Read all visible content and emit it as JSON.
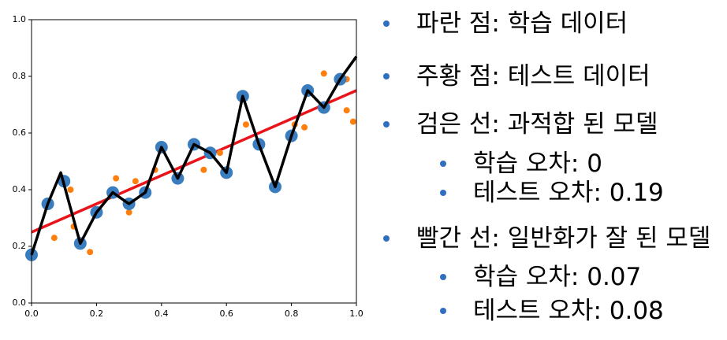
{
  "chart_data": {
    "type": "scatter",
    "xlim": [
      0,
      1
    ],
    "ylim": [
      0,
      1
    ],
    "xticks": [
      {
        "value": 0,
        "label": "0.0"
      },
      0.2,
      0.4,
      0.6,
      0.8,
      {
        "value": 1,
        "label": "1.0"
      }
    ],
    "yticks": [
      {
        "value": 0,
        "label": "0.0"
      },
      0.2,
      0.4,
      0.6,
      0.8,
      {
        "value": 1,
        "label": "1.0"
      }
    ],
    "series": [
      {
        "mode": "line",
        "color": "#e8141a",
        "x": [
          0,
          1
        ],
        "values": [
          0.25,
          0.75
        ]
      },
      {
        "mode": "markers",
        "color": "#ff7f0e",
        "size": 4,
        "x": [
          0.07,
          0.12,
          0.13,
          0.18,
          0.26,
          0.3,
          0.32,
          0.38,
          0.53,
          0.58,
          0.66,
          0.81,
          0.84,
          0.9,
          0.97,
          0.97,
          0.99
        ],
        "values": [
          0.23,
          0.4,
          0.27,
          0.18,
          0.44,
          0.32,
          0.43,
          0.47,
          0.47,
          0.53,
          0.63,
          0.63,
          0.62,
          0.81,
          0.79,
          0.68,
          0.64
        ]
      },
      {
        "mode": "markers",
        "color": "#3a7dbf",
        "size": 8,
        "x": [
          0,
          0.05,
          0.1,
          0.15,
          0.2,
          0.25,
          0.3,
          0.35,
          0.4,
          0.45,
          0.5,
          0.55,
          0.6,
          0.65,
          0.7,
          0.75,
          0.8,
          0.85,
          0.9,
          0.95
        ],
        "values": [
          0.17,
          0.35,
          0.43,
          0.21,
          0.32,
          0.39,
          0.35,
          0.39,
          0.55,
          0.44,
          0.56,
          0.53,
          0.46,
          0.73,
          0.56,
          0.41,
          0.59,
          0.75,
          0.69,
          0.79
        ]
      },
      {
        "mode": "line",
        "color": "#000000",
        "x": [
          0,
          0.05,
          0.09,
          0.15,
          0.2,
          0.25,
          0.3,
          0.35,
          0.4,
          0.45,
          0.5,
          0.55,
          0.6,
          0.65,
          0.7,
          0.75,
          0.8,
          0.85,
          0.9,
          0.95,
          1
        ],
        "values": [
          0.17,
          0.35,
          0.46,
          0.21,
          0.32,
          0.39,
          0.35,
          0.39,
          0.55,
          0.44,
          0.56,
          0.53,
          0.46,
          0.73,
          0.56,
          0.41,
          0.59,
          0.75,
          0.69,
          0.79,
          0.87
        ]
      }
    ]
  },
  "bullets": [
    {
      "level": 1,
      "text": "파란 점: 학습 데이터"
    },
    {
      "level": 1,
      "text": "주황 점: 테스트 데이터"
    },
    {
      "level": 1,
      "text": "검은 선: 과적합 된 모델"
    },
    {
      "level": 2,
      "text": "학습 오차: 0"
    },
    {
      "level": 2,
      "text": "테스트 오차: 0.19"
    },
    {
      "level": 1,
      "text": "빨간 선: 일반화가 잘 된 모델"
    },
    {
      "level": 2,
      "text": "학습 오차: 0.07"
    },
    {
      "level": 2,
      "text": "테스트 오차: 0.08"
    }
  ]
}
